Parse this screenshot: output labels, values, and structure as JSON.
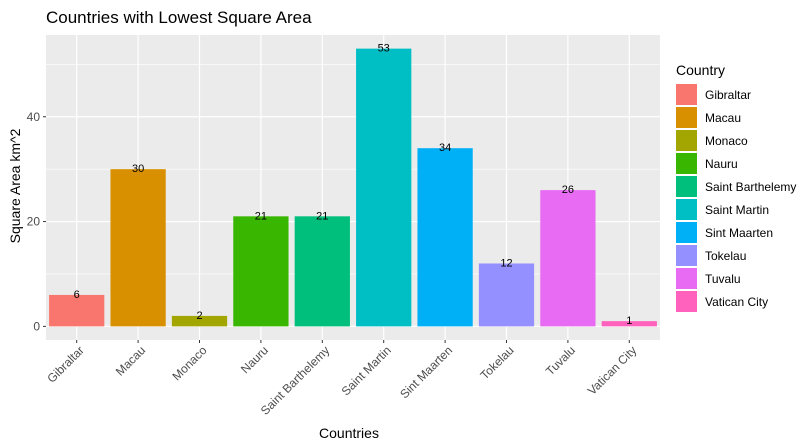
{
  "chart_data": {
    "type": "bar",
    "title": "Countries with Lowest Square Area",
    "xlabel": "Countries",
    "ylabel": "Square Area km^2",
    "ylim": [
      -2.6,
      55.6
    ],
    "yticks": [
      0,
      20,
      40
    ],
    "categories": [
      "Gibraltar",
      "Macau",
      "Monaco",
      "Nauru",
      "Saint Barthelemy",
      "Saint Martin",
      "Sint Maarten",
      "Tokelau",
      "Tuvalu",
      "Vatican City"
    ],
    "values": [
      6,
      30,
      2,
      21,
      21,
      53,
      34,
      12,
      26,
      1
    ],
    "data_labels": [
      "6",
      "30",
      "2",
      "21",
      "21",
      "53",
      "34",
      "12",
      "26",
      "1"
    ],
    "colors": [
      "#F8766D",
      "#D89000",
      "#A3A500",
      "#39B600",
      "#00BF7D",
      "#00BFC4",
      "#00B0F6",
      "#9590FF",
      "#E76BF3",
      "#FF62BC"
    ],
    "legend": {
      "title": "Country",
      "position": "right",
      "entries": [
        "Gibraltar",
        "Macau",
        "Monaco",
        "Nauru",
        "Saint Barthelemy",
        "Saint Martin",
        "Sint Maarten",
        "Tokelau",
        "Tuvalu",
        "Vatican City"
      ]
    },
    "grid": true,
    "panel_background": "#EBEBEB",
    "grid_color": "#FFFFFF"
  }
}
